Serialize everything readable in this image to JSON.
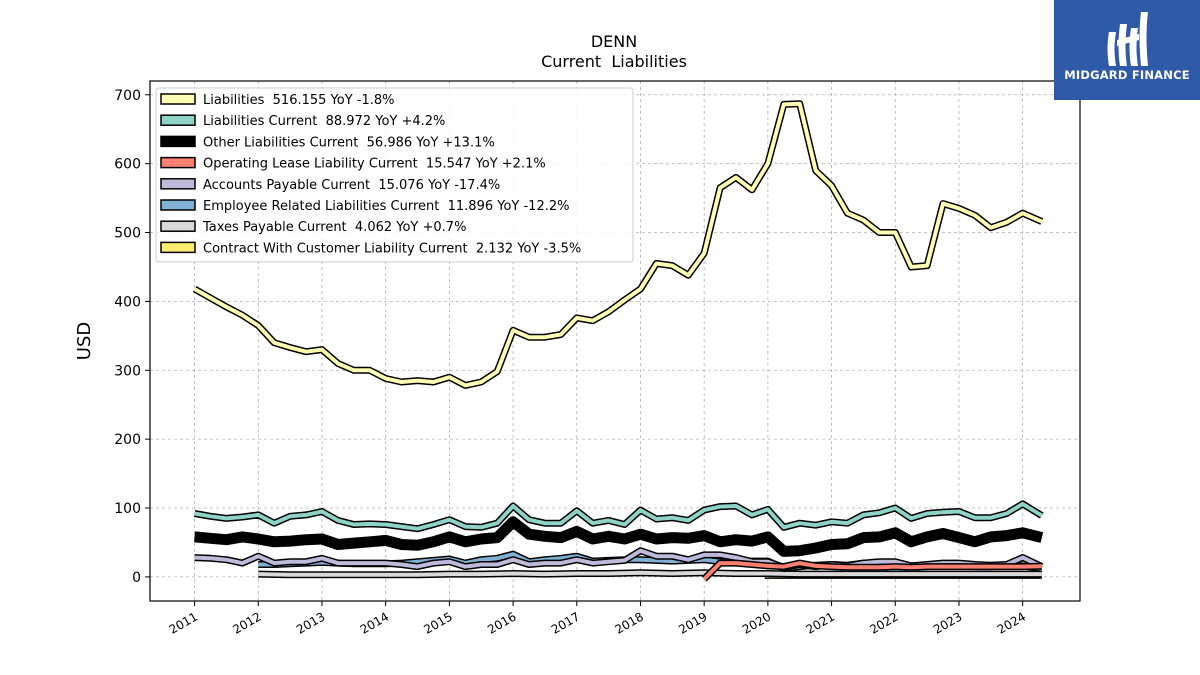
{
  "chart_data": {
    "type": "line",
    "title": "DENN",
    "subtitle": "Current  Liabilities",
    "ylabel": "USD",
    "xlabel": "",
    "ylim": [
      -35,
      720
    ],
    "xlim": [
      2010.3,
      2024.9
    ],
    "yticks": [
      0,
      100,
      200,
      300,
      400,
      500,
      600,
      700
    ],
    "xticks": [
      2011,
      2012,
      2013,
      2014,
      2015,
      2016,
      2017,
      2018,
      2019,
      2020,
      2021,
      2022,
      2023,
      2024
    ],
    "grid": true,
    "legend_position": "top-left",
    "series": [
      {
        "name": "Liabilities",
        "legend": "Liabilities  516.155 YoY -1.8%",
        "color": "#ffffb3",
        "width": 4,
        "x": [
          2011.0,
          2011.25,
          2011.5,
          2011.75,
          2012.0,
          2012.25,
          2012.5,
          2012.75,
          2013.0,
          2013.25,
          2013.5,
          2013.75,
          2014.0,
          2014.25,
          2014.5,
          2014.75,
          2015.0,
          2015.25,
          2015.5,
          2015.75,
          2016.0,
          2016.25,
          2016.5,
          2016.75,
          2017.0,
          2017.25,
          2017.5,
          2017.75,
          2018.0,
          2018.25,
          2018.5,
          2018.75,
          2019.0,
          2019.25,
          2019.5,
          2019.75,
          2020.0,
          2020.25,
          2020.5,
          2020.75,
          2021.0,
          2021.25,
          2021.5,
          2021.75,
          2022.0,
          2022.25,
          2022.5,
          2022.75,
          2023.0,
          2023.25,
          2023.5,
          2023.75,
          2024.0,
          2024.3
        ],
        "y": [
          418,
          405,
          392,
          380,
          365,
          340,
          333,
          327,
          330,
          310,
          300,
          300,
          288,
          283,
          285,
          283,
          290,
          278,
          283,
          298,
          358,
          348,
          348,
          352,
          376,
          372,
          385,
          402,
          418,
          455,
          452,
          438,
          470,
          565,
          580,
          562,
          600,
          686,
          687,
          590,
          568,
          528,
          518,
          500,
          500,
          450,
          452,
          542,
          535,
          525,
          507,
          515,
          528,
          516
        ]
      },
      {
        "name": "Liabilities Current",
        "legend": "Liabilities Current  88.972 YoY +4.2%",
        "color": "#8dd3c7",
        "width": 4,
        "x": [
          2011.0,
          2011.25,
          2011.5,
          2011.75,
          2012.0,
          2012.25,
          2012.5,
          2012.75,
          2013.0,
          2013.25,
          2013.5,
          2013.75,
          2014.0,
          2014.25,
          2014.5,
          2014.75,
          2015.0,
          2015.25,
          2015.5,
          2015.75,
          2016.0,
          2016.25,
          2016.5,
          2016.75,
          2017.0,
          2017.25,
          2017.5,
          2017.75,
          2018.0,
          2018.25,
          2018.5,
          2018.75,
          2019.0,
          2019.25,
          2019.5,
          2019.75,
          2020.0,
          2020.25,
          2020.5,
          2020.75,
          2021.0,
          2021.25,
          2021.5,
          2021.75,
          2022.0,
          2022.25,
          2022.5,
          2022.75,
          2023.0,
          2023.25,
          2023.5,
          2023.75,
          2024.0,
          2024.3
        ],
        "y": [
          92,
          88,
          85,
          87,
          90,
          78,
          88,
          90,
          95,
          82,
          76,
          77,
          76,
          73,
          70,
          76,
          83,
          73,
          72,
          78,
          103,
          83,
          78,
          78,
          96,
          78,
          82,
          76,
          97,
          84,
          86,
          82,
          97,
          102,
          103,
          90,
          98,
          72,
          78,
          75,
          80,
          78,
          90,
          93,
          100,
          85,
          92,
          94,
          95,
          86,
          86,
          92,
          106,
          89
        ]
      },
      {
        "name": "Other Liabilities Current",
        "legend": "Other Liabilities Current  56.986 YoY +13.1%",
        "color": "#000000",
        "width": 8,
        "x": [
          2011.0,
          2011.25,
          2011.5,
          2011.75,
          2012.0,
          2012.25,
          2012.5,
          2012.75,
          2013.0,
          2013.25,
          2013.5,
          2013.75,
          2014.0,
          2014.25,
          2014.5,
          2014.75,
          2015.0,
          2015.25,
          2015.5,
          2015.75,
          2016.0,
          2016.25,
          2016.5,
          2016.75,
          2017.0,
          2017.25,
          2017.5,
          2017.75,
          2018.0,
          2018.25,
          2018.5,
          2018.75,
          2019.0,
          2019.25,
          2019.5,
          2019.75,
          2020.0,
          2020.25,
          2020.5,
          2020.75,
          2021.0,
          2021.25,
          2021.5,
          2021.75,
          2022.0,
          2022.25,
          2022.5,
          2022.75,
          2023.0,
          2023.25,
          2023.5,
          2023.75,
          2024.0,
          2024.3
        ],
        "y": [
          58,
          56,
          54,
          58,
          55,
          51,
          52,
          54,
          55,
          47,
          49,
          51,
          53,
          47,
          46,
          51,
          58,
          51,
          55,
          57,
          80,
          62,
          59,
          57,
          66,
          55,
          59,
          55,
          62,
          55,
          57,
          56,
          60,
          51,
          54,
          52,
          58,
          37,
          38,
          42,
          47,
          48,
          57,
          58,
          64,
          51,
          58,
          63,
          57,
          51,
          58,
          60,
          64,
          57
        ]
      },
      {
        "name": "Operating Lease Liability Current",
        "legend": "Operating Lease Liability Current  15.547 YoY +2.1%",
        "color": "#fb8072",
        "width": 4,
        "x": [
          2019.0,
          2019.25,
          2019.5,
          2019.75,
          2020.0,
          2020.25,
          2020.5,
          2020.75,
          2021.0,
          2021.25,
          2021.5,
          2021.75,
          2022.0,
          2022.25,
          2022.5,
          2022.75,
          2023.0,
          2023.25,
          2023.5,
          2023.75,
          2024.0,
          2024.3
        ],
        "y": [
          -3,
          20,
          20,
          18,
          16,
          15,
          20,
          16,
          15,
          14,
          14,
          14,
          15,
          14,
          15,
          15,
          15,
          15,
          15,
          15,
          15,
          15.5
        ]
      },
      {
        "name": "Accounts Payable Current",
        "legend": "Accounts Payable Current  15.076 YoY -17.4%",
        "color": "#bebada",
        "width": 4,
        "x": [
          2011.0,
          2011.25,
          2011.5,
          2011.75,
          2012.0,
          2012.25,
          2012.5,
          2012.75,
          2013.0,
          2013.25,
          2013.5,
          2013.75,
          2014.0,
          2014.25,
          2014.5,
          2014.75,
          2015.0,
          2015.25,
          2015.5,
          2015.75,
          2016.0,
          2016.25,
          2016.5,
          2016.75,
          2017.0,
          2017.25,
          2017.5,
          2017.75,
          2018.0,
          2018.25,
          2018.5,
          2018.75,
          2019.0,
          2019.25,
          2019.5,
          2019.75,
          2020.0,
          2020.25,
          2020.5,
          2020.75,
          2021.0,
          2021.25,
          2021.5,
          2021.75,
          2022.0,
          2022.25,
          2022.5,
          2022.75,
          2023.0,
          2023.25,
          2023.5,
          2023.75,
          2024.0,
          2024.3
        ],
        "y": [
          28,
          27,
          25,
          20,
          30,
          20,
          22,
          22,
          27,
          20,
          20,
          20,
          20,
          18,
          15,
          20,
          22,
          15,
          18,
          18,
          25,
          18,
          20,
          20,
          25,
          20,
          22,
          24,
          38,
          30,
          30,
          25,
          32,
          32,
          28,
          22,
          22,
          14,
          18,
          15,
          18,
          16,
          20,
          22,
          22,
          16,
          18,
          20,
          20,
          18,
          17,
          18,
          28,
          15
        ]
      },
      {
        "name": "Employee Related Liabilities Current",
        "legend": "Employee Related Liabilities Current  11.896 YoY -12.2%",
        "color": "#80b1d3",
        "width": 4,
        "x": [
          2012.0,
          2012.25,
          2012.5,
          2012.75,
          2013.0,
          2013.25,
          2013.5,
          2013.75,
          2014.0,
          2014.25,
          2014.5,
          2014.75,
          2015.0,
          2015.25,
          2015.5,
          2015.75,
          2016.0,
          2016.25,
          2016.5,
          2016.75,
          2017.0,
          2017.25,
          2017.5,
          2017.75,
          2018.0,
          2018.25,
          2018.5,
          2018.75,
          2019.0,
          2019.25,
          2019.5,
          2019.75,
          2020.0,
          2020.25,
          2020.5,
          2020.75,
          2021.0,
          2021.25,
          2021.5,
          2021.75,
          2022.0,
          2022.25,
          2022.5,
          2022.75,
          2023.0,
          2023.25,
          2023.5,
          2023.75,
          2024.0,
          2024.3
        ],
        "y": [
          18,
          18,
          19,
          20,
          21,
          20,
          19,
          19,
          19,
          20,
          22,
          24,
          26,
          20,
          25,
          27,
          33,
          22,
          25,
          27,
          30,
          23,
          24,
          25,
          25,
          24,
          23,
          24,
          25,
          22,
          23,
          23,
          23,
          12,
          15,
          17,
          18,
          17,
          20,
          19,
          20,
          16,
          16,
          17,
          17,
          15,
          15,
          16,
          16,
          12
        ]
      },
      {
        "name": "Taxes Payable Current",
        "legend": "Taxes Payable Current  4.062 YoY +0.7%",
        "color": "#d9d9d9",
        "width": 4,
        "x": [
          2012.0,
          2012.5,
          2013.0,
          2013.5,
          2014.0,
          2014.5,
          2015.0,
          2015.5,
          2016.0,
          2016.5,
          2017.0,
          2017.5,
          2018.0,
          2018.5,
          2019.0,
          2019.5,
          2020.0,
          2020.5,
          2021.0,
          2021.5,
          2022.0,
          2022.5,
          2023.0,
          2023.5,
          2024.0,
          2024.3
        ],
        "y": [
          4,
          3,
          3,
          3,
          3,
          3,
          4,
          4,
          5,
          4,
          5,
          5,
          6,
          5,
          6,
          5,
          5,
          4,
          4,
          4,
          4,
          4,
          4,
          4,
          4,
          4
        ]
      },
      {
        "name": "Contract With Customer Liability Current",
        "legend": "Contract With Customer Liability Current  2.132 YoY -3.5%",
        "color": "#ffed6f",
        "width": 4,
        "x": [
          2019.95,
          2020.25,
          2020.5,
          2021.0,
          2021.5,
          2022.0,
          2022.5,
          2023.0,
          2023.5,
          2024.0,
          2024.3
        ],
        "y": [
          2.2,
          2.2,
          2.2,
          2.1,
          2.2,
          2.2,
          2.2,
          2.2,
          2.1,
          2.2,
          2.1
        ]
      }
    ]
  },
  "logo": {
    "text": "MIDGARD FINANCE"
  }
}
